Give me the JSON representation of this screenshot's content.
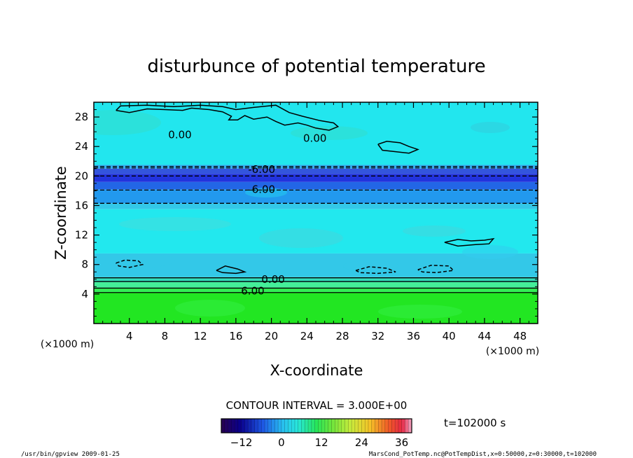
{
  "chart_data": {
    "type": "heatmap",
    "title": "disturbunce of potential temperature",
    "xlabel": "X-coordinate",
    "ylabel": "Z-coordinate",
    "x_unit": "(×1000 m)",
    "y_unit": "(×1000 m)",
    "xlim": [
      0,
      50
    ],
    "ylim": [
      0,
      30
    ],
    "x_ticks": [
      4,
      8,
      12,
      16,
      20,
      24,
      28,
      32,
      36,
      40,
      44,
      48
    ],
    "y_ticks": [
      4,
      8,
      12,
      16,
      20,
      24,
      28
    ],
    "contour_interval_text": "CONTOUR INTERVAL = 3.000E+00",
    "time_text": "t=102000 s",
    "colorbar": {
      "range": [
        -18,
        39
      ],
      "tick_values": [
        -12,
        0,
        12,
        24,
        36
      ],
      "tick_labels": [
        "−12",
        "0",
        "12",
        "24",
        "36"
      ]
    },
    "layers": [
      {
        "z0": 0.0,
        "z1": 4.2,
        "color": "#22e622"
      },
      {
        "z0": 4.2,
        "z1": 4.8,
        "color": "#33ee55"
      },
      {
        "z0": 4.8,
        "z1": 5.6,
        "color": "#44ee99"
      },
      {
        "z0": 5.6,
        "z1": 6.3,
        "color": "#33ddbb"
      },
      {
        "z0": 6.3,
        "z1": 9.5,
        "color": "#33c8e8"
      },
      {
        "z0": 9.5,
        "z1": 15.5,
        "color": "#22e8ee"
      },
      {
        "z0": 15.5,
        "z1": 16.3,
        "color": "#33c8e8"
      },
      {
        "z0": 16.3,
        "z1": 18.2,
        "color": "#2299ee"
      },
      {
        "z0": 18.2,
        "z1": 19.2,
        "color": "#2266e6"
      },
      {
        "z0": 19.2,
        "z1": 20.3,
        "color": "#2233dd"
      },
      {
        "z0": 20.3,
        "z1": 21.0,
        "color": "#3355dd"
      },
      {
        "z0": 21.0,
        "z1": 21.5,
        "color": "#33aaee"
      },
      {
        "z0": 21.5,
        "z1": 30.0,
        "color": "#22e6ee"
      }
    ],
    "lines": [
      {
        "z": 4.2,
        "style": "solid"
      },
      {
        "z": 4.8,
        "style": "solid"
      },
      {
        "z": 5.7,
        "style": "solid"
      },
      {
        "z": 6.2,
        "style": "solid"
      },
      {
        "z": 16.3,
        "style": "dashed"
      },
      {
        "z": 18.1,
        "style": "dashed"
      },
      {
        "z": 20.0,
        "style": "dashed"
      },
      {
        "z": 21.1,
        "style": "dashed"
      },
      {
        "z": 21.3,
        "style": "dashed"
      }
    ],
    "contour_paths": [
      {
        "style": "solid",
        "points": [
          [
            2.5,
            28.9
          ],
          [
            4,
            28.6
          ],
          [
            6,
            29.1
          ],
          [
            8,
            29.0
          ],
          [
            10,
            28.9
          ],
          [
            11,
            29.2
          ],
          [
            13,
            29.0
          ],
          [
            14.5,
            28.7
          ],
          [
            15.5,
            28.1
          ],
          [
            15.2,
            27.6
          ],
          [
            16.2,
            27.6
          ],
          [
            17,
            28.2
          ],
          [
            18,
            27.7
          ],
          [
            19.5,
            28.0
          ],
          [
            20.5,
            27.4
          ],
          [
            21.5,
            26.9
          ],
          [
            23,
            27.2
          ],
          [
            24,
            26.9
          ],
          [
            25,
            26.5
          ],
          [
            26.5,
            26.2
          ],
          [
            27.5,
            26.7
          ],
          [
            27,
            27.2
          ],
          [
            25.5,
            27.5
          ],
          [
            23.5,
            28.1
          ],
          [
            22,
            28.6
          ],
          [
            20.5,
            29.6
          ],
          [
            18,
            29.3
          ],
          [
            16,
            29.0
          ],
          [
            14.5,
            29.4
          ],
          [
            12,
            29.6
          ],
          [
            9,
            29.4
          ],
          [
            6,
            29.6
          ],
          [
            3,
            29.5
          ],
          [
            2.5,
            28.9
          ]
        ]
      },
      {
        "style": "solid",
        "points": [
          [
            32,
            24.3
          ],
          [
            33,
            24.7
          ],
          [
            34.5,
            24.5
          ],
          [
            35.5,
            24.0
          ],
          [
            36.5,
            23.6
          ],
          [
            35.5,
            23.1
          ],
          [
            34,
            23.3
          ],
          [
            32.5,
            23.5
          ],
          [
            32,
            24.3
          ]
        ]
      },
      {
        "style": "solid",
        "points": [
          [
            39.5,
            11.0
          ],
          [
            41,
            11.4
          ],
          [
            42.5,
            11.2
          ],
          [
            44,
            11.3
          ],
          [
            45,
            11.5
          ],
          [
            44.5,
            10.8
          ],
          [
            43,
            10.7
          ],
          [
            41,
            10.5
          ],
          [
            39.5,
            11.0
          ]
        ]
      },
      {
        "style": "dashed",
        "points": [
          [
            2.5,
            8.2
          ],
          [
            3.5,
            8.6
          ],
          [
            5,
            8.5
          ],
          [
            5.5,
            8.0
          ],
          [
            4,
            7.6
          ],
          [
            2.8,
            7.8
          ],
          [
            2.5,
            8.2
          ]
        ]
      },
      {
        "style": "dashed",
        "points": [
          [
            29.5,
            7.2
          ],
          [
            31,
            7.7
          ],
          [
            33,
            7.5
          ],
          [
            34,
            7.0
          ],
          [
            32,
            6.8
          ],
          [
            30,
            6.9
          ],
          [
            29.5,
            7.2
          ]
        ]
      },
      {
        "style": "dashed",
        "points": [
          [
            36.5,
            7.3
          ],
          [
            38,
            7.9
          ],
          [
            40,
            7.8
          ],
          [
            40.5,
            7.2
          ],
          [
            38.5,
            6.9
          ],
          [
            37,
            7.0
          ],
          [
            36.5,
            7.3
          ]
        ]
      },
      {
        "style": "solid",
        "points": [
          [
            13.8,
            7.2
          ],
          [
            14.8,
            7.8
          ],
          [
            16.2,
            7.4
          ],
          [
            17,
            7.0
          ],
          [
            16,
            6.8
          ],
          [
            14.5,
            6.9
          ],
          [
            13.8,
            7.2
          ]
        ]
      }
    ],
    "contour_labels": [
      {
        "x": 9.7,
        "z": 25.6,
        "text": "0.00"
      },
      {
        "x": 24.9,
        "z": 25.1,
        "text": "0.00"
      },
      {
        "x": 18.9,
        "z": 20.9,
        "text": "-6.00"
      },
      {
        "x": 18.9,
        "z": 18.2,
        "text": "-6.00"
      },
      {
        "x": 20.2,
        "z": 6.0,
        "text": "0.00"
      },
      {
        "x": 17.9,
        "z": 4.4,
        "text": "6.00"
      }
    ],
    "footer_left": "/usr/bin/gpview   2009-01-25",
    "footer_right": "MarsCond_PotTemp.nc@PotTempDist,x=0:50000,z=0:30000,t=102000"
  }
}
